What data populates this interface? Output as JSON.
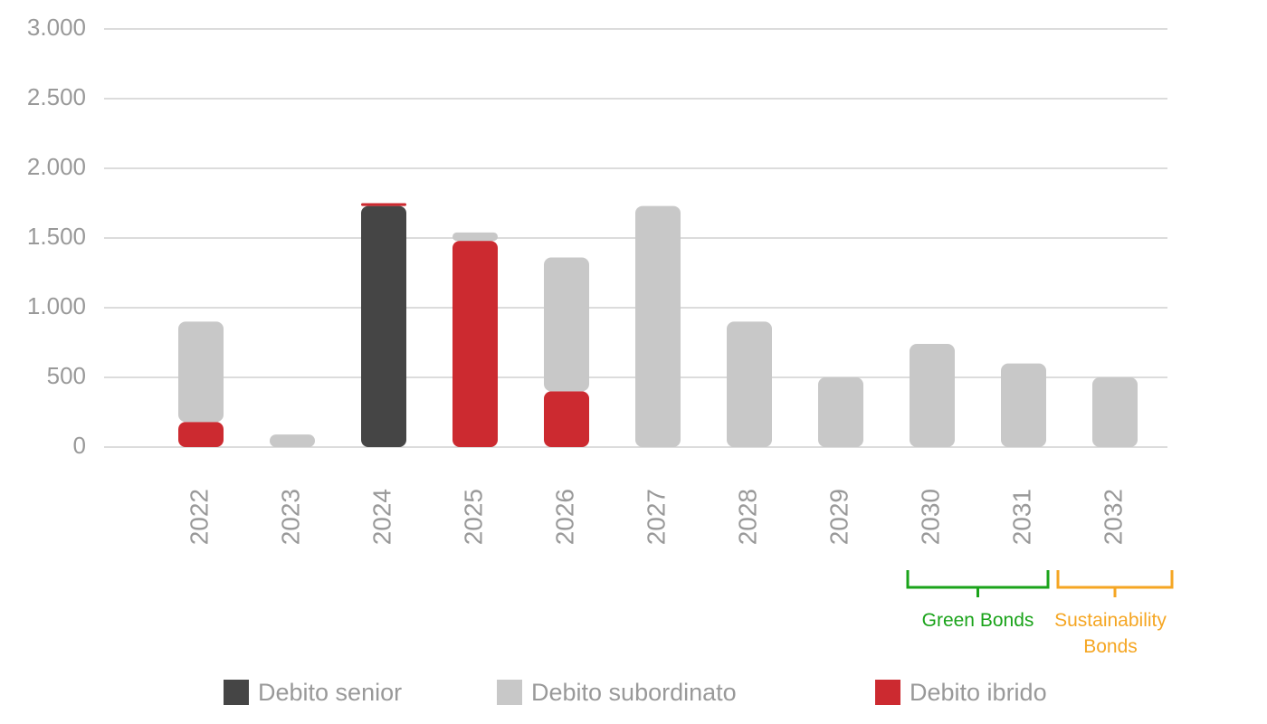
{
  "chart_data": {
    "type": "stacked_bar",
    "categories": [
      "2022",
      "2023",
      "2024",
      "2025",
      "2026",
      "2027",
      "2028",
      "2029",
      "2030",
      "2031",
      "2032"
    ],
    "series": [
      {
        "name": "Debito senior",
        "color": "#454545",
        "values": [
          0,
          0,
          1730,
          0,
          0,
          0,
          0,
          0,
          0,
          0,
          0
        ]
      },
      {
        "name": "Debito ibrido",
        "color": "#cc2a30",
        "values": [
          180,
          0,
          20,
          1480,
          400,
          0,
          0,
          0,
          0,
          0,
          0
        ]
      },
      {
        "name": "Debito subordinato",
        "color": "#c8c8c8",
        "values": [
          720,
          90,
          0,
          60,
          960,
          1730,
          900,
          500,
          740,
          600,
          500
        ]
      }
    ],
    "legend_order": [
      0,
      2,
      1
    ],
    "ylim": [
      0,
      3000
    ],
    "yticks": [
      0,
      500,
      {
        "value": 1000,
        "label": "1.000"
      },
      {
        "value": 1500,
        "label": "1.500"
      },
      {
        "value": 2000,
        "label": "2.000"
      },
      {
        "value": 2500,
        "label": "2.500"
      },
      {
        "value": 3000,
        "label": "3.000"
      }
    ],
    "grid": true,
    "annotations": [
      {
        "text": "Green Bonds",
        "color": "#1aa31a",
        "from": "2030",
        "to": "2031"
      },
      {
        "text": "Sustainability Bonds",
        "color": "#f5a623",
        "from": "2032",
        "to": "2032"
      }
    ]
  }
}
